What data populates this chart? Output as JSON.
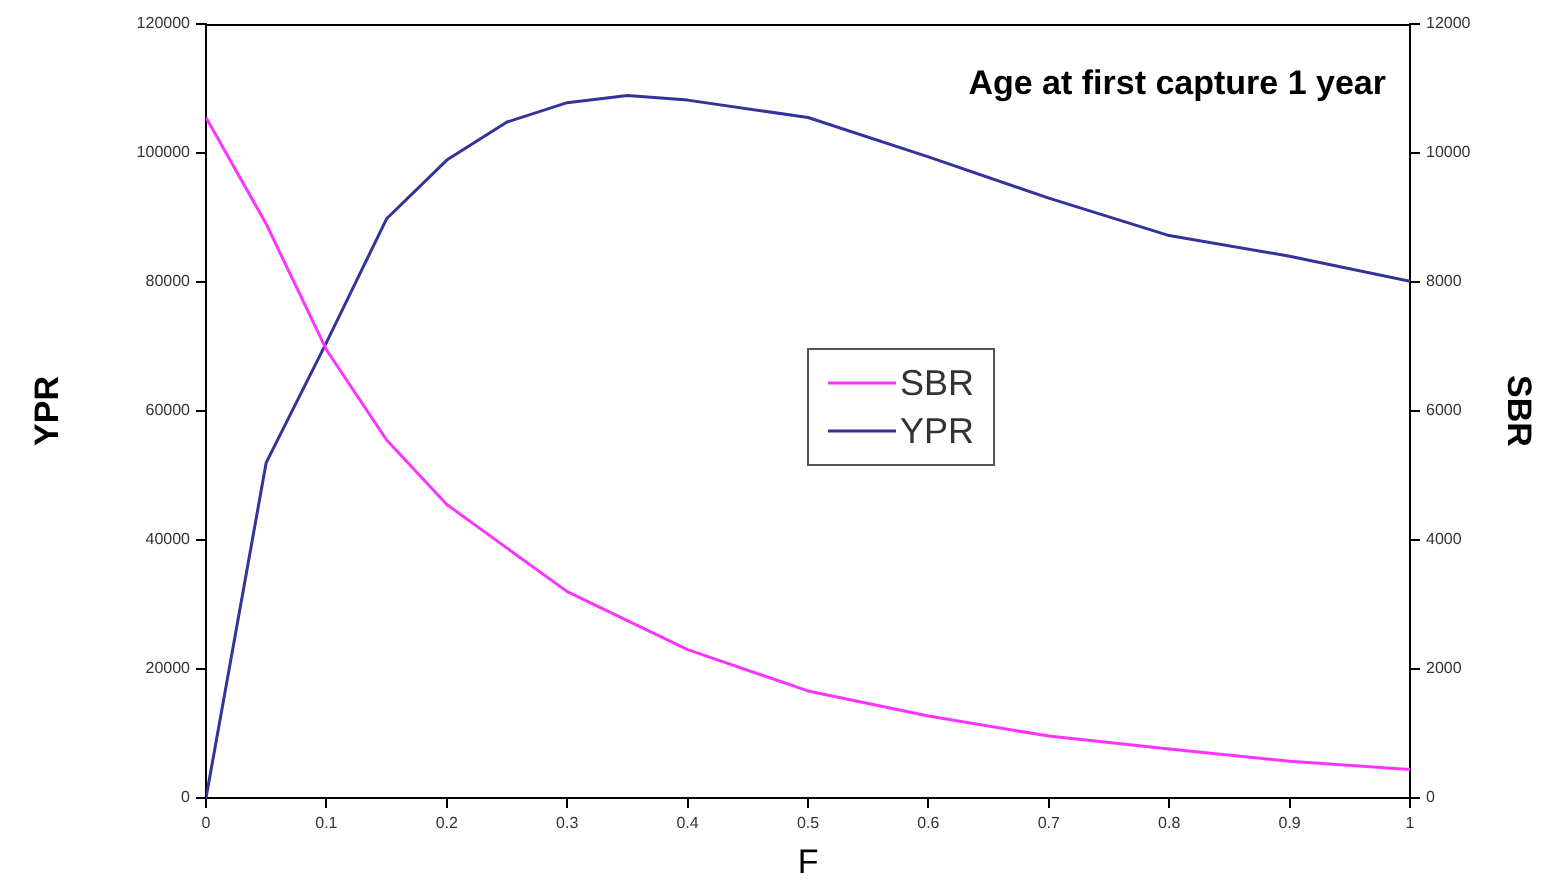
{
  "chart_data": {
    "type": "line",
    "xlabel": "F",
    "ylabel": "YPR",
    "y2label": "SBR",
    "annotations": [
      "Age at first capture 1 year"
    ],
    "x": [
      0,
      0.05,
      0.1,
      0.15,
      0.2,
      0.25,
      0.3,
      0.35,
      0.4,
      0.5,
      0.6,
      0.7,
      0.8,
      0.9,
      1
    ],
    "series": [
      {
        "name": "SBR",
        "color": "#ff33ff",
        "axis": "y2",
        "x": [
          0,
          0.05,
          0.1,
          0.15,
          0.2,
          0.3,
          0.4,
          0.5,
          0.6,
          0.7,
          0.8,
          0.9,
          1
        ],
        "values": [
          10550,
          8900,
          6950,
          5550,
          4550,
          3200,
          2300,
          1660,
          1270,
          960,
          760,
          570,
          440
        ]
      },
      {
        "name": "YPR",
        "color": "#33339a",
        "values": [
          0,
          52000,
          70600,
          89800,
          98900,
          104800,
          107800,
          108900,
          108200,
          105500,
          99400,
          93000,
          87200,
          84000,
          80100
        ]
      }
    ],
    "xlim": [
      0,
      1
    ],
    "xticks": [
      0,
      0.1,
      0.2,
      0.3,
      0.4,
      0.5,
      0.6,
      0.7,
      0.8,
      0.9,
      1
    ],
    "ylim": [
      0,
      120000
    ],
    "yticks": [
      0,
      20000,
      40000,
      60000,
      80000,
      100000,
      120000
    ],
    "y2lim": [
      0,
      12000
    ],
    "y2ticks": [
      0,
      2000,
      4000,
      6000,
      8000,
      10000,
      12000
    ],
    "grid": false,
    "legend": "right",
    "marker": "none",
    "line_style": "solid"
  }
}
